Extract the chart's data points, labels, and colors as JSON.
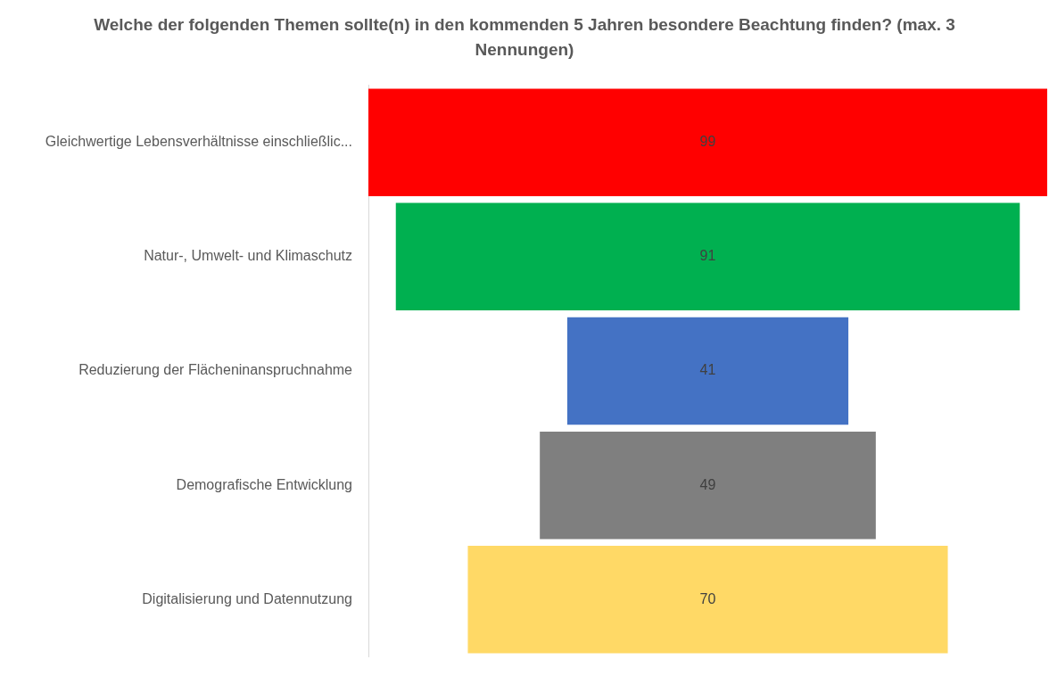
{
  "chart_data": {
    "type": "other",
    "title": "Welche der folgenden Themen sollte(n) in den kommenden 5 Jahren besondere Beachtung finden? (max. 3 Nennungen)",
    "categories": [
      "Gleichwertige Lebensverhältnisse einschließlic...",
      "Natur-, Umwelt- und Klimaschutz",
      "Reduzierung der Flächeninanspruchnahme",
      "Demografische Entwicklung",
      "Digitalisierung und Datennutzung"
    ],
    "values": [
      99,
      91,
      41,
      49,
      70
    ],
    "colors": [
      "#ff0000",
      "#00b050",
      "#4472c4",
      "#7f7f7f",
      "#ffd966"
    ],
    "data_labels": true
  }
}
